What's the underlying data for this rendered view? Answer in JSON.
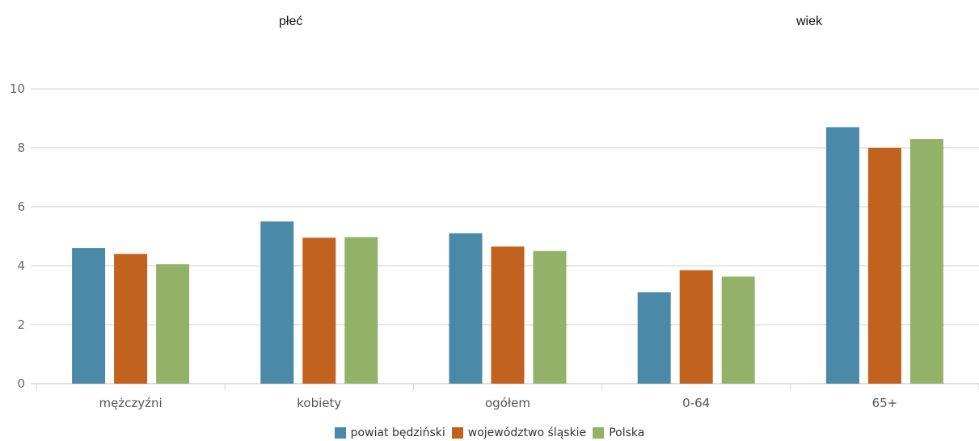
{
  "headers": {
    "left": "płeć",
    "right": "wiek"
  },
  "chart_data": {
    "type": "bar",
    "categories": [
      "mężczyźni",
      "kobiety",
      "ogółem",
      "0-64",
      "65+"
    ],
    "series": [
      {
        "name": "powiat będziński",
        "color": "#4a89a8",
        "values": [
          4.6,
          5.5,
          5.1,
          3.1,
          8.7
        ]
      },
      {
        "name": "województwo śląskie",
        "color": "#c1621f",
        "values": [
          4.4,
          4.95,
          4.65,
          3.85,
          8.0
        ]
      },
      {
        "name": "Polska",
        "color": "#93b267",
        "values": [
          4.05,
          4.97,
          4.5,
          3.63,
          8.3
        ]
      }
    ],
    "yticks": [
      0,
      2,
      4,
      6,
      8,
      10
    ],
    "ylim": [
      0,
      10
    ],
    "grid": true,
    "legend": "bottom-center"
  }
}
